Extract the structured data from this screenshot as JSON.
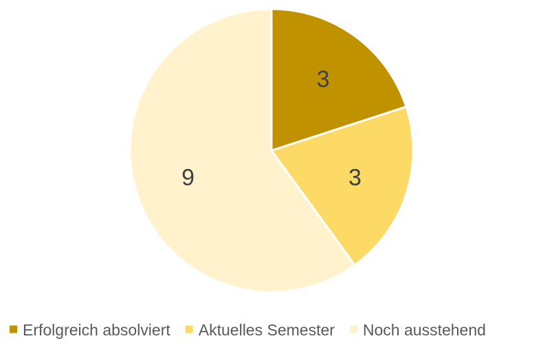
{
  "chart_data": {
    "type": "pie",
    "title": "",
    "legend_position": "bottom",
    "slices": [
      {
        "label": "Erfolgreich absolviert",
        "value": 3,
        "color": "#C09200"
      },
      {
        "label": "Aktuelles Semester",
        "value": 3,
        "color": "#FDD966"
      },
      {
        "label": "Noch ausstehend",
        "value": 9,
        "color": "#FFF2CC"
      }
    ]
  }
}
